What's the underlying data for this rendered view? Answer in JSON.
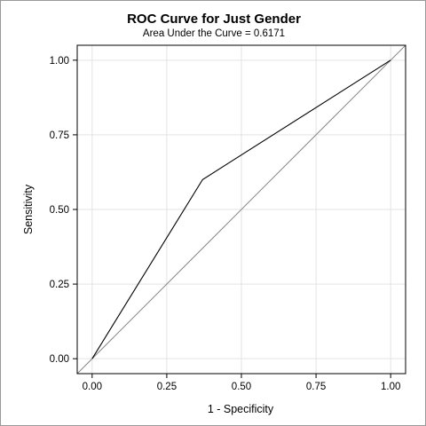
{
  "chart_data": {
    "type": "line",
    "title": "ROC Curve for Just Gender",
    "subtitle": "Area Under the Curve = 0.6171",
    "xlabel": "1 - Specificity",
    "ylabel": "Sensitivity",
    "xlim": [
      -0.05,
      1.05
    ],
    "ylim": [
      -0.05,
      1.05
    ],
    "xticks": [
      0,
      0.25,
      0.5,
      0.75,
      1
    ],
    "yticks": [
      0,
      0.25,
      0.5,
      0.75,
      1
    ],
    "xtick_labels": [
      "0.00",
      "0.25",
      "0.50",
      "0.75",
      "1.00"
    ],
    "ytick_labels": [
      "0.00",
      "0.25",
      "0.50",
      "0.75",
      "1.00"
    ],
    "grid": true,
    "series": [
      {
        "x": [
          0,
          0.37,
          1
        ],
        "y": [
          0,
          0.6,
          1
        ],
        "color": "#000000"
      },
      {
        "x": [
          -0.05,
          1.05
        ],
        "y": [
          -0.05,
          1.05
        ],
        "color": "#8c8c8c"
      }
    ]
  }
}
